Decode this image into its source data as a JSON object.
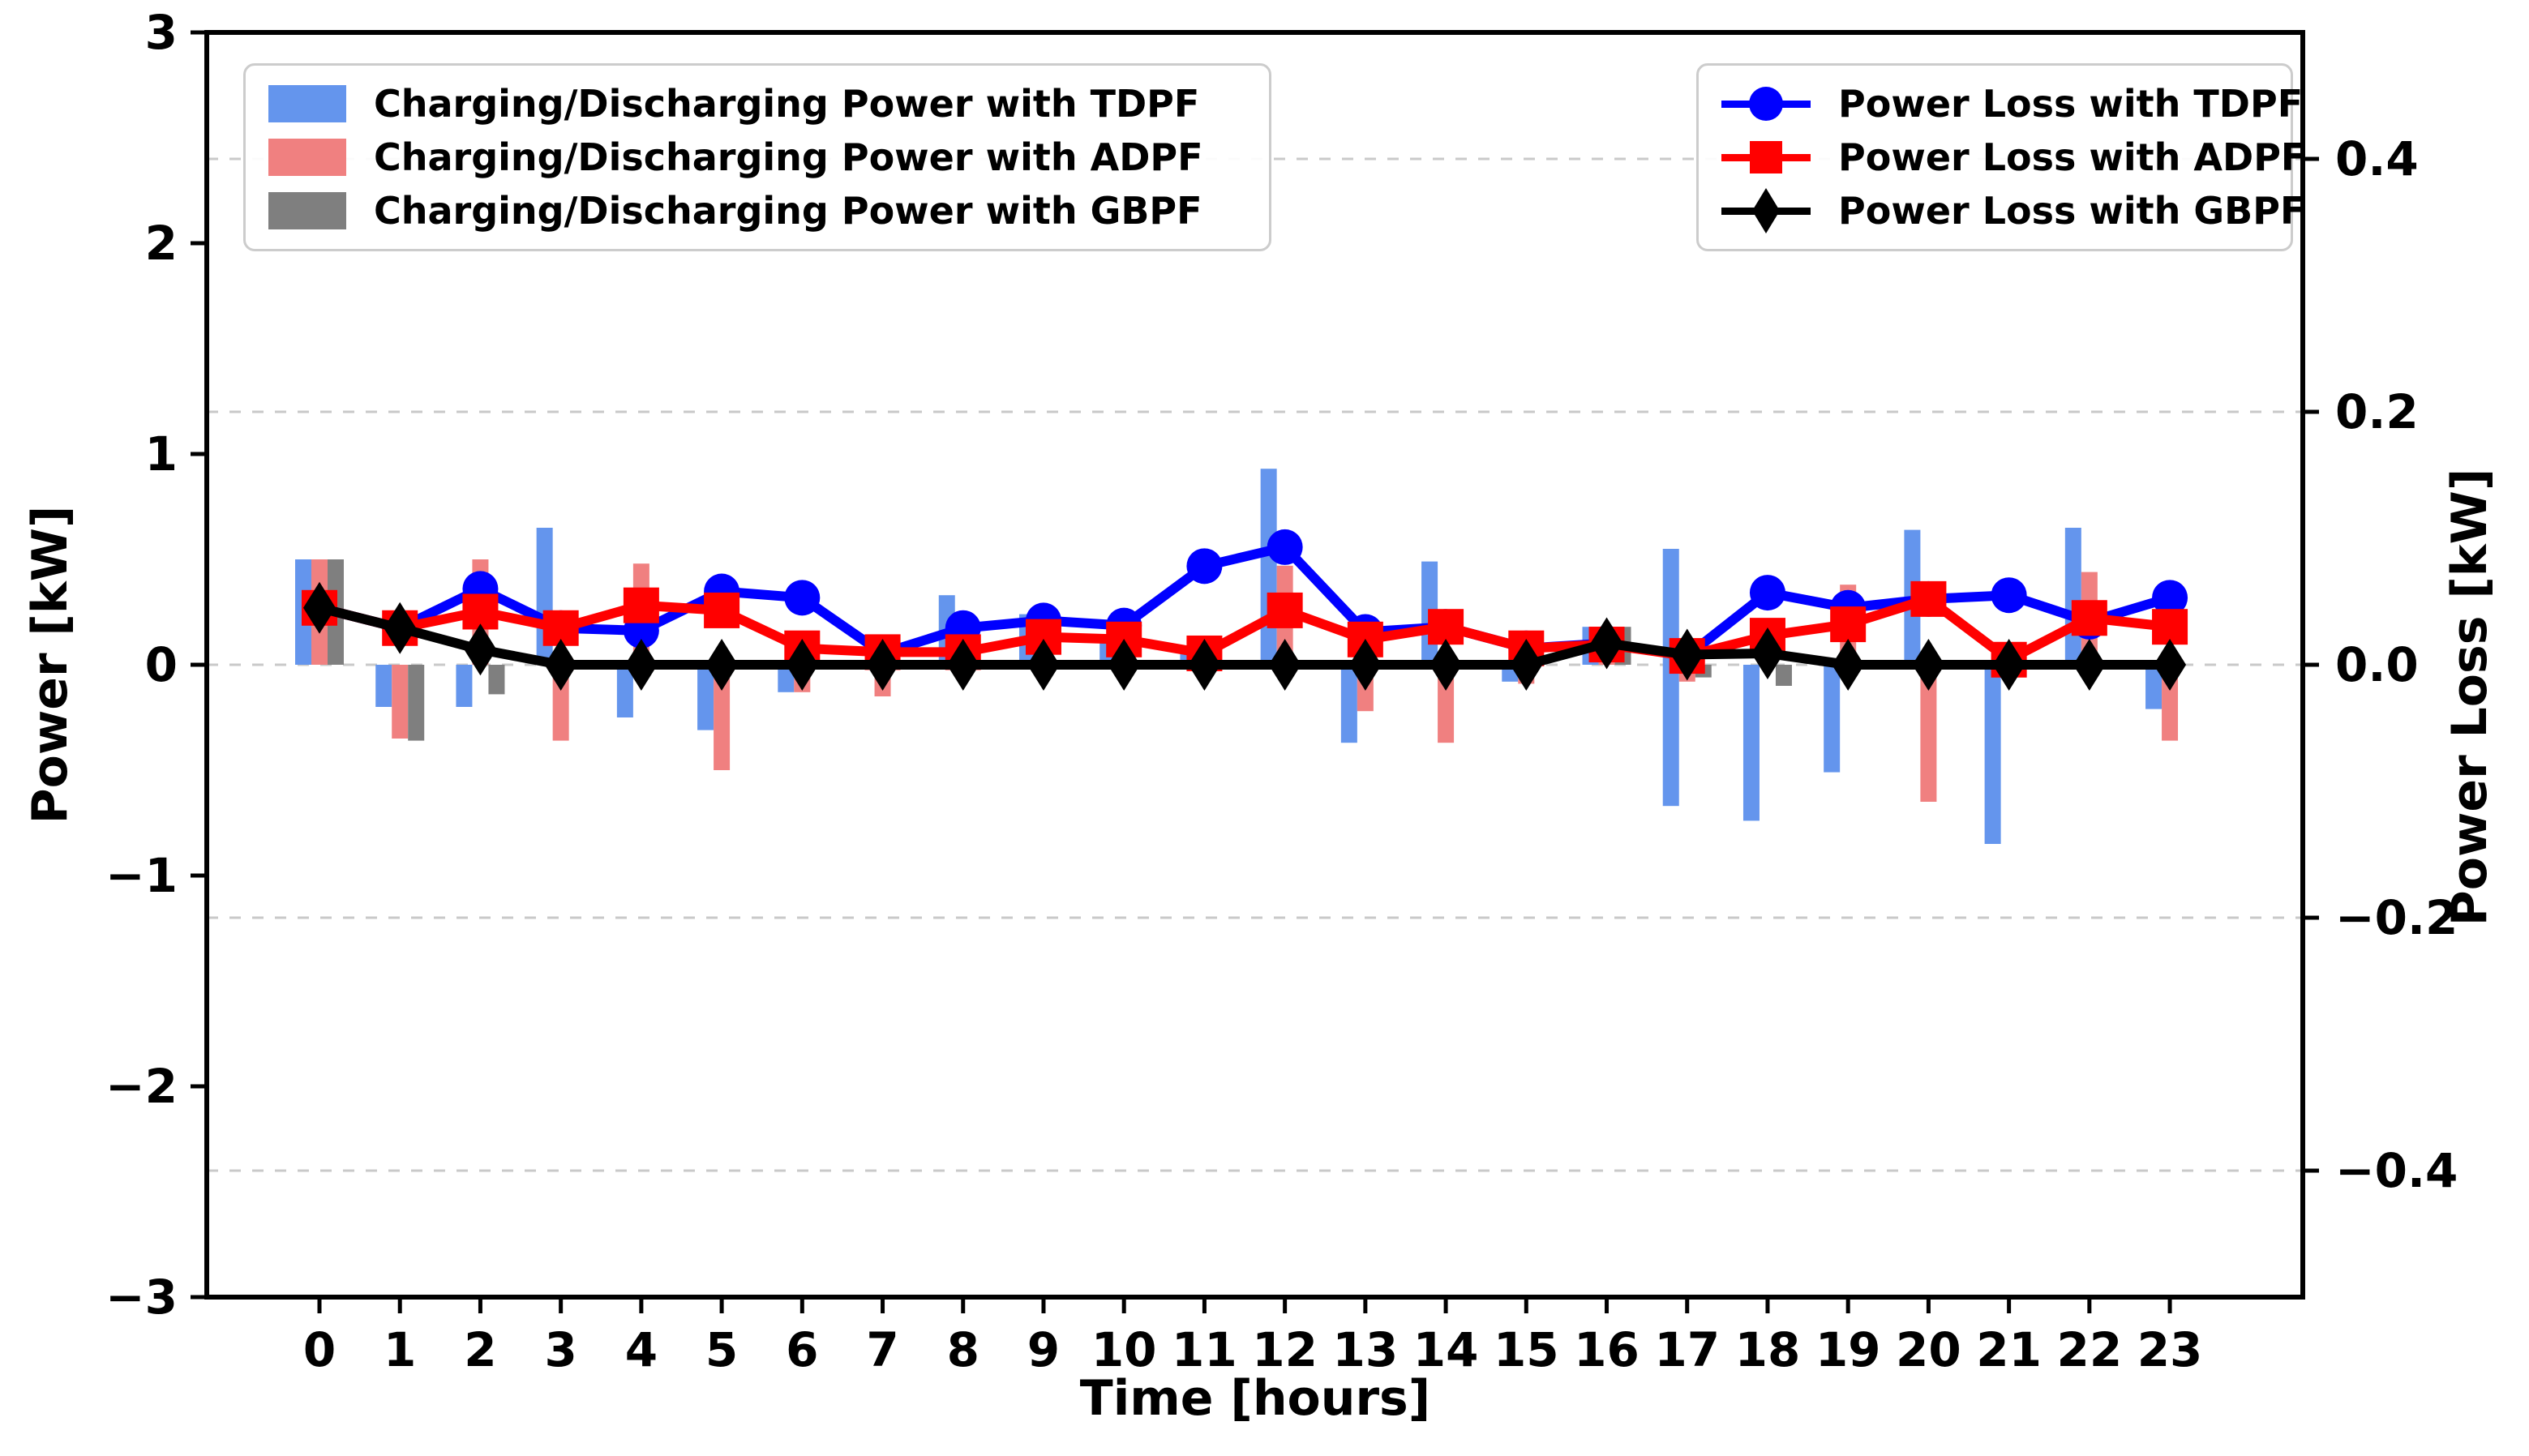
{
  "chart_data": {
    "type": "bar+line",
    "xlabel": "Time [hours]",
    "ylabel_left": "Power [kW]",
    "ylabel_right": "Power Loss [kW]",
    "x_ticks": [
      "0",
      "1",
      "2",
      "3",
      "4",
      "5",
      "6",
      "7",
      "8",
      "9",
      "10",
      "11",
      "12",
      "13",
      "14",
      "15",
      "16",
      "17",
      "18",
      "19",
      "20",
      "21",
      "22",
      "23"
    ],
    "x": [
      0,
      1,
      2,
      3,
      4,
      5,
      6,
      7,
      8,
      9,
      10,
      11,
      12,
      13,
      14,
      15,
      16,
      17,
      18,
      19,
      20,
      21,
      22,
      23
    ],
    "ylim_left": [
      -3,
      3
    ],
    "ylim_right": [
      -0.5,
      0.5
    ],
    "yticks_left": [
      "3",
      "2",
      "1",
      "0",
      "−1",
      "−2",
      "−3"
    ],
    "yticks_left_vals": [
      3,
      2,
      1,
      0,
      -1,
      -2,
      -3
    ],
    "yticks_right": [
      "0.4",
      "0.2",
      "0.0",
      "−0.2",
      "−0.4"
    ],
    "yticks_right_vals": [
      0.4,
      0.2,
      0.0,
      -0.2,
      -0.4
    ],
    "grid": "dashed horizontal lines at right-axis ticks",
    "legend_left_position": "upper left",
    "legend_right_position": "upper right",
    "bar_series": [
      {
        "name": "Charging/Discharging Power with TDPF",
        "color": "#6495ED",
        "axis": "left",
        "values": [
          0.5,
          -0.2,
          -0.2,
          0.65,
          -0.25,
          -0.31,
          -0.13,
          0,
          0.33,
          0.24,
          0.13,
          0.09,
          0.93,
          -0.37,
          0.49,
          -0.08,
          0.18,
          [
            -0.67,
            0.55
          ],
          -0.74,
          -0.51,
          0.64,
          -0.85,
          0.65,
          -0.21
        ]
      },
      {
        "name": "Charging/Discharging Power with ADPF",
        "color": "#F08080",
        "axis": "left",
        "values": [
          0.5,
          -0.35,
          0.5,
          -0.36,
          0.48,
          -0.5,
          -0.13,
          -0.15,
          0,
          0,
          0,
          0,
          0.47,
          -0.22,
          -0.37,
          -0.09,
          0.18,
          -0.08,
          0,
          0.38,
          -0.65,
          0,
          0.44,
          -0.36
        ]
      },
      {
        "name": "Charging/Discharging Power with GBPF",
        "color": "#7F7F7F",
        "axis": "left",
        "values": [
          0.5,
          -0.36,
          -0.14,
          0,
          0,
          0,
          0,
          0,
          0,
          0,
          0,
          0,
          0,
          0,
          0,
          0,
          0.18,
          -0.06,
          -0.1,
          0,
          0,
          0,
          0,
          0
        ]
      }
    ],
    "line_series": [
      {
        "name": "Power Loss with TDPF",
        "color": "#0000FF",
        "marker": "circle",
        "axis": "right",
        "values": [
          0.045,
          0.029,
          0.06,
          0.029,
          0.027,
          0.058,
          0.053,
          0.009,
          0.029,
          0.035,
          0.031,
          0.078,
          0.093,
          0.026,
          0.03,
          0.013,
          0.017,
          0.007,
          0.057,
          0.045,
          0.052,
          0.055,
          0.034,
          0.053
        ]
      },
      {
        "name": "Power Loss with ADPF",
        "color": "#FF0000",
        "marker": "square",
        "axis": "right",
        "values": [
          0.045,
          0.029,
          0.042,
          0.029,
          0.047,
          0.043,
          0.013,
          0.01,
          0.01,
          0.022,
          0.02,
          0.009,
          0.043,
          0.02,
          0.03,
          0.013,
          0.016,
          0.007,
          0.023,
          0.032,
          0.052,
          0.004,
          0.037,
          0.03
        ]
      },
      {
        "name": "Power Loss with GBPF",
        "color": "#000000",
        "marker": "diamond",
        "axis": "right",
        "values": [
          0.045,
          0.029,
          0.012,
          0,
          0,
          0,
          0,
          0,
          0,
          0,
          0,
          0,
          0,
          0,
          0,
          0,
          0.017,
          0.008,
          0.009,
          0,
          0,
          0,
          0,
          0
        ]
      }
    ],
    "colors": {
      "bar_tdpf": "#6495ED",
      "bar_adpf": "#F08080",
      "bar_gbpf": "#7F7F7F",
      "line_tdpf": "#0000FF",
      "line_adpf": "#FF0000",
      "line_gbpf": "#000000",
      "gridline": "#c9c9c9",
      "spine": "#000000",
      "legend_border": "#cccccc"
    }
  }
}
